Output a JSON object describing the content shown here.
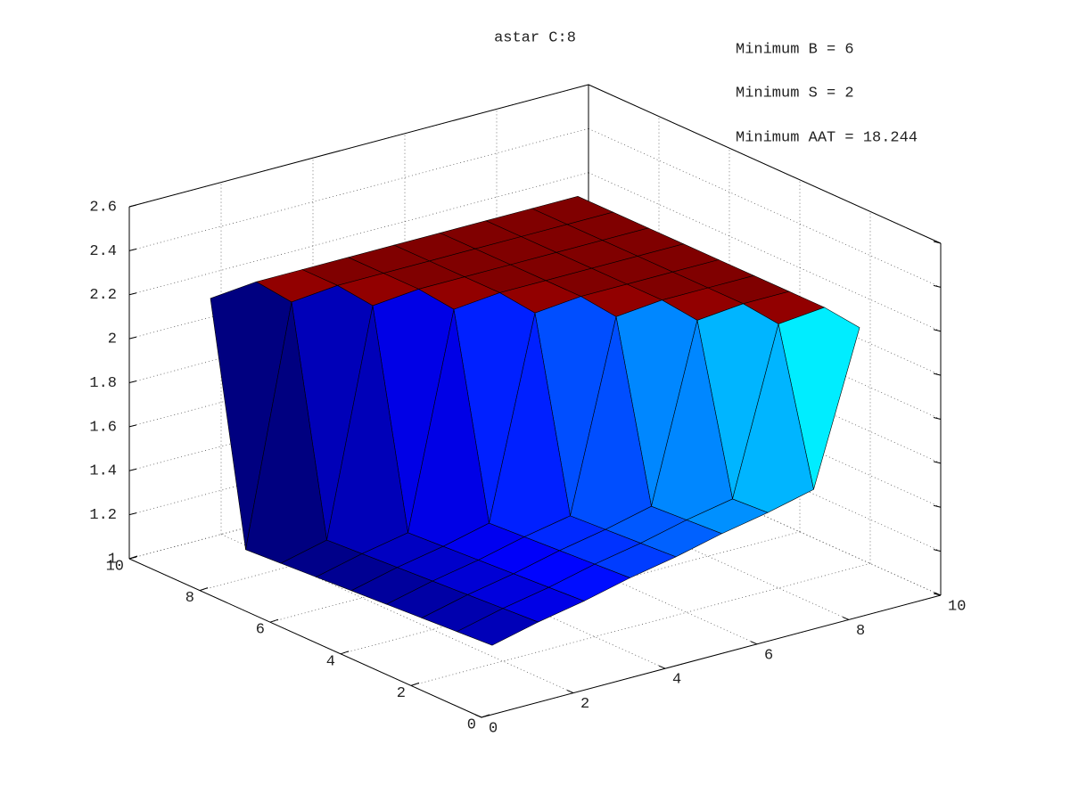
{
  "chart_data": {
    "type": "surface",
    "title": "astar C:8",
    "annotations": [
      "Minimum B = 6",
      "Minimum S = 2",
      "Minimum AAT = 18.244"
    ],
    "x": [
      1,
      2,
      3,
      4,
      5,
      6,
      7,
      8,
      9
    ],
    "y": [
      1,
      2,
      3,
      4,
      5,
      6,
      7,
      8,
      9
    ],
    "z": [
      [
        1.2,
        1.25,
        1.29,
        1.34,
        1.38,
        1.43,
        1.47,
        1.52,
        2.2
      ],
      [
        1.19,
        1.24,
        1.28,
        1.33,
        1.37,
        1.42,
        1.46,
        2.2,
        2.22
      ],
      [
        1.18,
        1.23,
        1.27,
        1.32,
        1.36,
        1.41,
        2.2,
        2.22,
        2.22
      ],
      [
        1.17,
        1.22,
        1.26,
        1.31,
        1.35,
        2.2,
        2.22,
        2.22,
        2.22
      ],
      [
        1.16,
        1.21,
        1.25,
        1.3,
        2.2,
        2.22,
        2.22,
        2.22,
        2.22
      ],
      [
        1.15,
        1.2,
        1.24,
        2.2,
        2.22,
        2.22,
        2.22,
        2.22,
        2.22
      ],
      [
        1.14,
        1.19,
        2.2,
        2.22,
        2.22,
        2.22,
        2.22,
        2.22,
        2.22
      ],
      [
        1.13,
        2.2,
        2.22,
        2.22,
        2.22,
        2.22,
        2.22,
        2.22,
        2.22
      ],
      [
        2.2,
        2.22,
        2.22,
        2.22,
        2.22,
        2.22,
        2.22,
        2.22,
        2.22
      ]
    ],
    "xlim": [
      0,
      10
    ],
    "ylim": [
      0,
      10
    ],
    "zlim": [
      1,
      2.6
    ],
    "xticks": [
      0,
      2,
      4,
      6,
      8,
      10
    ],
    "yticks": [
      0,
      2,
      4,
      6,
      8,
      10
    ],
    "zticks": [
      1,
      1.2,
      1.4,
      1.6,
      1.8,
      2,
      2.2,
      2.4,
      2.6
    ],
    "grid": true,
    "colormap": "jet"
  }
}
